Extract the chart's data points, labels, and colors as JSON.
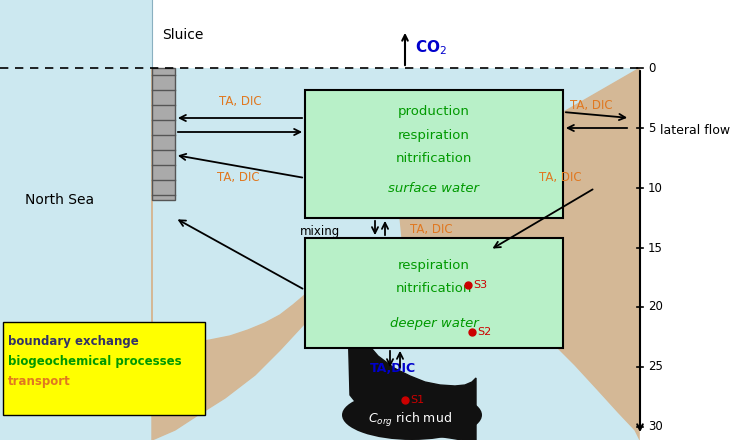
{
  "fig_width": 7.43,
  "fig_height": 4.4,
  "dpi": 100,
  "bg_color": "#ffffff",
  "north_sea_color": "#cce8f0",
  "lake_color": "#cce8f0",
  "box_color": "#b8f0c8",
  "sediment_color": "#d4b896",
  "black_mud_color": "#111111",
  "yellow_box_color": "#ffff00",
  "orange_color": "#e07820",
  "green_color": "#009900",
  "blue_color": "#0000cc",
  "red_color": "#cc0000",
  "legend_text_color": "#333366",
  "depth_ticks": [
    0,
    5,
    10,
    15,
    20,
    25,
    30
  ],
  "depth_y_img": [
    68,
    128,
    188,
    248,
    307,
    367,
    427
  ]
}
